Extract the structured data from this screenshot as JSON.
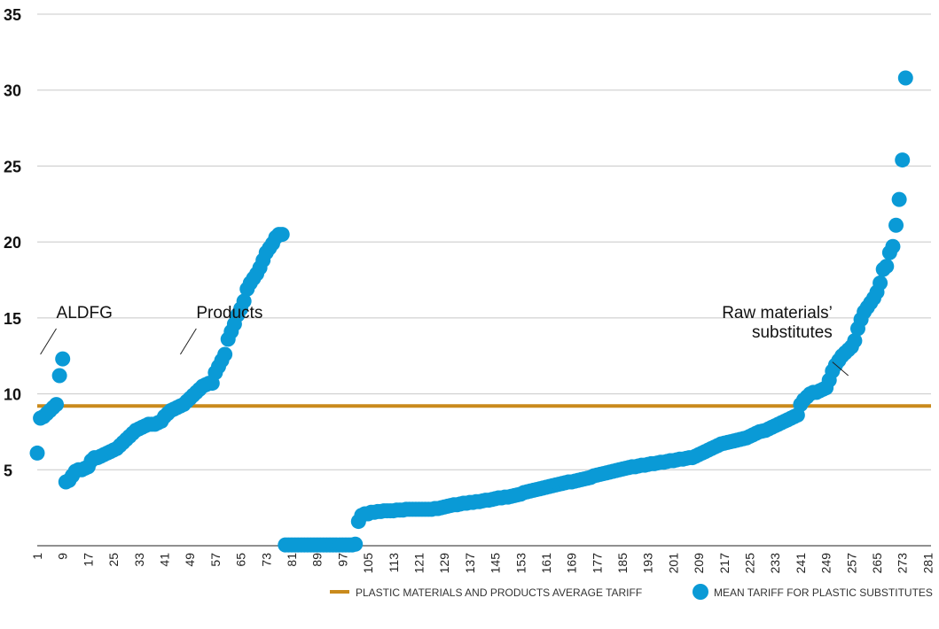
{
  "chart_data": {
    "type": "scatter",
    "ylim": [
      0,
      35
    ],
    "yticks": [
      5,
      10,
      15,
      20,
      25,
      30,
      35
    ],
    "xlim": [
      1,
      282
    ],
    "xticks": [
      "1",
      "9",
      "17",
      "25",
      "33",
      "41",
      "49",
      "57",
      "65",
      "73",
      "81",
      "89",
      "97",
      "105",
      "113",
      "121",
      "129",
      "137",
      "145",
      "153",
      "161",
      "169",
      "177",
      "185",
      "193",
      "201",
      "209",
      "217",
      "225",
      "233",
      "241",
      "249",
      "257",
      "265",
      "273",
      "281"
    ],
    "series": [
      {
        "name": "PLASTIC MATERIALS AND PRODUCTS AVERAGE TARIFF",
        "kind": "hline",
        "value": 9.2,
        "color": "#c98a1c"
      },
      {
        "name": "MEAN TARIFF FOR PLASTIC SUBSTITUTES",
        "kind": "points",
        "color": "#0a9ad6",
        "segments": [
          {
            "x_start": 1,
            "y": [
              6.1,
              8.4,
              8.5,
              8.7,
              8.9,
              9.1,
              9.3,
              11.2,
              12.3
            ]
          },
          {
            "x_start": 10,
            "y": [
              4.2,
              4.3,
              4.6,
              4.9,
              5.0,
              5.0,
              5.1,
              5.2,
              5.6,
              5.8,
              5.8,
              5.9,
              6.0,
              6.1,
              6.2,
              6.3,
              6.4,
              6.6,
              6.8,
              7.0,
              7.2,
              7.4,
              7.6,
              7.7,
              7.8,
              7.9,
              8.0,
              8.0,
              8.0,
              8.1,
              8.2,
              8.5,
              8.7,
              8.9,
              9.0,
              9.1,
              9.2,
              9.3,
              9.5,
              9.7,
              9.9,
              10.1,
              10.3,
              10.5,
              10.6,
              10.7,
              10.7,
              11.4,
              11.8,
              12.2,
              12.6,
              13.6,
              14.1,
              14.6,
              15.2,
              15.6,
              16.1,
              16.9,
              17.3,
              17.6,
              17.9,
              18.3,
              18.8,
              19.3,
              19.6,
              19.9,
              20.3,
              20.5,
              20.5
            ]
          },
          {
            "x_start": 79,
            "y": [
              0.05,
              0.05,
              0.05,
              0.05,
              0.05,
              0.05,
              0.05,
              0.05,
              0.05,
              0.05,
              0.05,
              0.05,
              0.05,
              0.05,
              0.05,
              0.05,
              0.05,
              0.05,
              0.05,
              0.05,
              0.05,
              0.05,
              0.1
            ]
          },
          {
            "x_start": 102,
            "y": [
              1.6,
              2.0,
              2.1,
              2.1,
              2.2,
              2.2,
              2.25,
              2.25,
              2.3,
              2.3,
              2.3,
              2.3,
              2.35,
              2.35,
              2.35,
              2.4,
              2.4,
              2.4,
              2.4,
              2.4,
              2.4,
              2.4,
              2.4,
              2.4,
              2.45,
              2.45,
              2.5,
              2.55,
              2.6,
              2.65,
              2.7,
              2.7,
              2.75,
              2.8,
              2.8,
              2.85,
              2.85,
              2.9,
              2.9,
              2.95,
              3.0,
              3.0,
              3.05,
              3.1,
              3.15,
              3.15,
              3.2,
              3.2,
              3.25,
              3.3,
              3.35,
              3.4,
              3.5,
              3.55,
              3.6,
              3.65,
              3.7,
              3.75,
              3.8,
              3.85,
              3.9,
              3.95,
              4.0,
              4.05,
              4.1,
              4.15,
              4.2,
              4.2,
              4.25,
              4.3,
              4.35,
              4.4,
              4.45,
              4.5,
              4.6,
              4.65,
              4.7,
              4.75,
              4.8,
              4.85,
              4.9,
              4.95,
              5.0,
              5.05,
              5.1,
              5.15,
              5.2,
              5.2,
              5.25,
              5.3,
              5.3,
              5.35,
              5.4,
              5.4,
              5.45,
              5.5,
              5.5,
              5.55,
              5.6,
              5.6,
              5.65,
              5.7,
              5.7,
              5.75,
              5.8,
              5.8,
              5.9,
              6.0,
              6.1,
              6.2,
              6.3,
              6.4,
              6.5,
              6.6,
              6.7,
              6.75,
              6.8,
              6.85,
              6.9,
              6.95,
              7.0,
              7.05,
              7.1,
              7.2,
              7.3,
              7.4,
              7.5,
              7.55,
              7.6,
              7.7,
              7.8,
              7.9,
              8.0,
              8.1,
              8.2,
              8.3,
              8.4,
              8.5,
              8.6,
              9.3,
              9.6,
              9.8,
              10.0,
              10.1,
              10.1,
              10.2,
              10.3,
              10.4,
              10.9,
              11.5,
              11.9,
              12.2,
              12.5,
              12.7,
              12.9,
              13.1,
              13.5,
              14.3,
              14.9,
              15.4,
              15.7,
              16.0,
              16.3,
              16.7,
              17.3,
              18.2,
              18.4,
              19.3,
              19.7,
              21.1,
              22.8,
              25.4,
              30.8
            ]
          }
        ]
      }
    ],
    "annotations": [
      {
        "lines": [
          "ALDFG"
        ],
        "anchor": "start",
        "text_x": 7,
        "text_y": 15.0,
        "leader_from": [
          7,
          14.3
        ],
        "leader_to": [
          2,
          12.6
        ]
      },
      {
        "lines": [
          "Products"
        ],
        "anchor": "start",
        "text_x": 51,
        "text_y": 15.0,
        "leader_from": [
          51,
          14.3
        ],
        "leader_to": [
          46,
          12.6
        ]
      },
      {
        "lines": [
          "Raw materials’",
          "substitutes"
        ],
        "anchor": "end",
        "text_x": 251,
        "text_y": 15.0,
        "leader_from": [
          251,
          12.1
        ],
        "leader_to": [
          256,
          11.2
        ]
      }
    ],
    "legend": {
      "position": "bottom-right",
      "items": [
        {
          "label": "PLASTIC MATERIALS AND PRODUCTS AVERAGE TARIFF",
          "marker": "line",
          "color": "#c98a1c"
        },
        {
          "label": "MEAN TARIFF FOR PLASTIC SUBSTITUTES",
          "marker": "dot",
          "color": "#0a9ad6"
        }
      ]
    },
    "grid": "horizontal"
  }
}
